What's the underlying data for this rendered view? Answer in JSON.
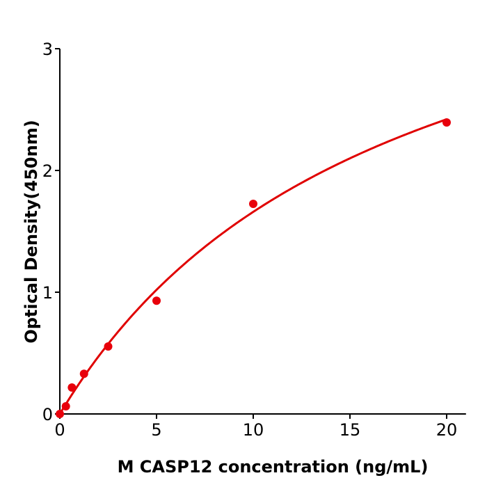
{
  "chart_data": {
    "type": "scatter",
    "title": "",
    "xlabel": "M  CASP12 concentration (ng/mL)",
    "ylabel": "Optical Density(450nm)",
    "xlim": [
      0,
      21
    ],
    "ylim": [
      0,
      3
    ],
    "xticks": [
      0,
      5,
      10,
      15,
      20
    ],
    "yticks": [
      0,
      1,
      2,
      3
    ],
    "grid": false,
    "points": {
      "x": [
        0,
        0.3125,
        0.625,
        1.25,
        2.5,
        5,
        10,
        20
      ],
      "y": [
        0.0,
        0.063,
        0.217,
        0.33,
        0.554,
        0.93,
        1.726,
        2.394
      ]
    },
    "fit_curve": {
      "model": "saturating fit",
      "x_range": [
        0,
        20
      ]
    },
    "colors": {
      "points": "#e8000b",
      "curve": "#e00000",
      "axis": "#000000"
    }
  }
}
